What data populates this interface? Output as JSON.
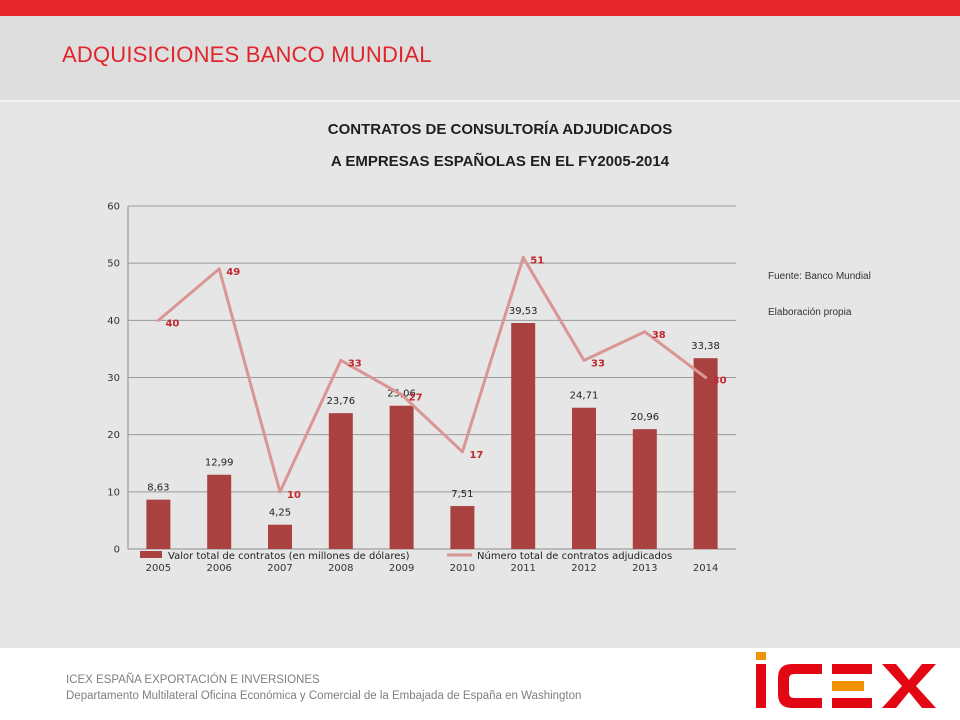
{
  "header": {
    "title": "ADQUISICIONES BANCO MUNDIAL"
  },
  "notes": {
    "source": "Fuente: Banco Mundial",
    "credit": "Elaboración propia"
  },
  "footer": {
    "line1": "ICEX ESPAÑA EXPORTACIÓN  E INVERSIONES",
    "line2": "Departamento Multilateral Oficina Económica y Comercial de la Embajada de España en Washington"
  },
  "logo": {
    "text": "ICEX",
    "colors": {
      "red": "#e30613",
      "orange": "#f39200"
    }
  },
  "colors": {
    "topbar": "#e8262d",
    "title": "#e0242b",
    "bar": "#a8413f",
    "line": "#d99694",
    "line_label": "#c0282e"
  },
  "chart_data": {
    "type": "bar",
    "title_lines": [
      "CONTRATOS DE CONSULTORÍA ADJUDICADOS",
      "A EMPRESAS ESPAÑOLAS EN EL FY2005-2014"
    ],
    "categories": [
      "2005",
      "2006",
      "2007",
      "2008",
      "2009",
      "2010",
      "2011",
      "2012",
      "2013",
      "2014"
    ],
    "ylim": [
      0,
      60
    ],
    "yticks": [
      0,
      10,
      20,
      30,
      40,
      50,
      60
    ],
    "grid": true,
    "legend_position": "bottom",
    "series": [
      {
        "name": "Valor total de contratos (en millones de dólares)",
        "type": "bar",
        "values": [
          8.63,
          12.99,
          4.25,
          23.76,
          25.06,
          7.51,
          39.53,
          24.71,
          20.96,
          33.38
        ],
        "labels": [
          "8,63",
          "12,99",
          "4,25",
          "23,76",
          "25,06",
          "7,51",
          "39,53",
          "24,71",
          "20,96",
          "33,38"
        ]
      },
      {
        "name": "Número total de contratos adjudicados",
        "type": "line",
        "values": [
          40,
          49,
          10,
          33,
          27,
          17,
          51,
          33,
          38,
          30
        ],
        "labels": [
          "40",
          "49",
          "10",
          "33",
          "27",
          "17",
          "51",
          "33",
          "38",
          "30"
        ]
      }
    ]
  }
}
